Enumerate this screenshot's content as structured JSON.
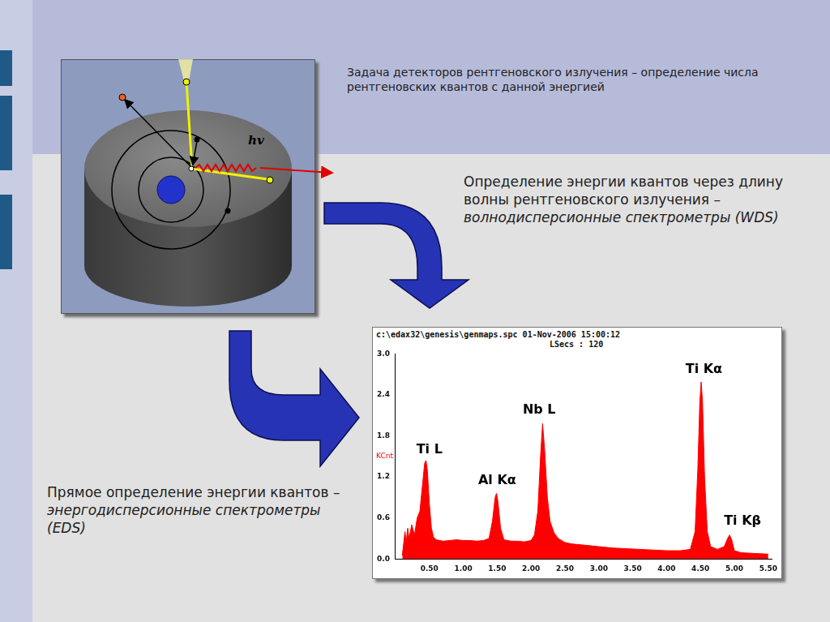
{
  "slide": {
    "diagram_label": "hv",
    "top_text": "Задача детекторов рентгеновского излучения – определение числа рентгеновских квантов с данной энергией",
    "wds_text": {
      "plain": "Определение энергии квантов через длину волны рентгеновского излучения –",
      "italic": "волнодисперсионные спектрометры (WDS)"
    },
    "eds_text": {
      "plain": "Прямое определение энергии квантов –",
      "italic": "энергодисперсионные спектрометры (EDS)"
    }
  },
  "chart_data": {
    "type": "line",
    "header": "c:\\edax32\\genesis\\genmaps.spc 01-Nov-2006 15:00:12",
    "subheader": "LSecs : 120",
    "y_label": "KCnt",
    "x": [
      0.1,
      0.14,
      0.16,
      0.18,
      0.2,
      0.24,
      0.28,
      0.32,
      0.36,
      0.4,
      0.43,
      0.45,
      0.47,
      0.5,
      0.53,
      0.56,
      0.6,
      0.7,
      0.8,
      0.9,
      1.0,
      1.1,
      1.2,
      1.3,
      1.38,
      1.43,
      1.47,
      1.49,
      1.51,
      1.55,
      1.6,
      1.7,
      1.8,
      1.9,
      2.0,
      2.05,
      2.1,
      2.14,
      2.17,
      2.2,
      2.24,
      2.28,
      2.34,
      2.4,
      2.5,
      2.6,
      2.8,
      3.0,
      3.2,
      3.4,
      3.6,
      3.8,
      4.0,
      4.2,
      4.35,
      4.42,
      4.46,
      4.49,
      4.51,
      4.53,
      4.56,
      4.6,
      4.65,
      4.75,
      4.85,
      4.9,
      4.93,
      4.96,
      5.0,
      5.1,
      5.3,
      5.5
    ],
    "values": [
      0.05,
      0.4,
      0.25,
      0.45,
      0.3,
      0.5,
      0.35,
      0.6,
      0.7,
      1.1,
      1.4,
      1.44,
      1.3,
      0.8,
      0.45,
      0.32,
      0.28,
      0.26,
      0.27,
      0.28,
      0.27,
      0.27,
      0.26,
      0.27,
      0.3,
      0.55,
      0.9,
      0.96,
      0.85,
      0.45,
      0.28,
      0.26,
      0.26,
      0.25,
      0.27,
      0.35,
      0.7,
      1.5,
      1.98,
      1.6,
      0.9,
      0.55,
      0.38,
      0.3,
      0.24,
      0.22,
      0.2,
      0.18,
      0.16,
      0.15,
      0.14,
      0.13,
      0.12,
      0.12,
      0.14,
      0.4,
      1.3,
      2.3,
      2.59,
      2.3,
      1.2,
      0.4,
      0.18,
      0.14,
      0.18,
      0.3,
      0.35,
      0.28,
      0.12,
      0.09,
      0.08,
      0.07
    ],
    "color": "#ff0000",
    "xlim": [
      0,
      5.55
    ],
    "xticks": [
      {
        "value": 0.5,
        "label": "0.50"
      },
      {
        "value": 1,
        "label": "1.00"
      },
      {
        "value": 1.5,
        "label": "1.50"
      },
      {
        "value": 2,
        "label": "2.00"
      },
      {
        "value": 2.5,
        "label": "2.50"
      },
      {
        "value": 3,
        "label": "3.00"
      },
      {
        "value": 3.5,
        "label": "3.50"
      },
      {
        "value": 4,
        "label": "4.00"
      },
      {
        "value": 4.5,
        "label": "4.50"
      },
      {
        "value": 5,
        "label": "5.00"
      },
      {
        "value": 5.5,
        "label": "5.50"
      }
    ],
    "ylim": [
      0,
      3
    ],
    "yticks": [
      {
        "value": 0,
        "label": "0.0"
      },
      0.6,
      1.2,
      1.8,
      2.4,
      {
        "value": 3,
        "label": "3.0"
      }
    ],
    "grid": false,
    "annotations": [
      {
        "text": "Ti L",
        "x": 0.5,
        "y": 1.5
      },
      {
        "text": "Al Kα",
        "x": 1.5,
        "y": 1.05
      },
      {
        "text": "Nb L",
        "x": 2.12,
        "y": 2.08
      },
      {
        "text": "Ti Kα",
        "x": 4.55,
        "y": 2.68
      },
      {
        "text": "Ti Kβ",
        "x": 5.12,
        "y": 0.45
      }
    ]
  }
}
